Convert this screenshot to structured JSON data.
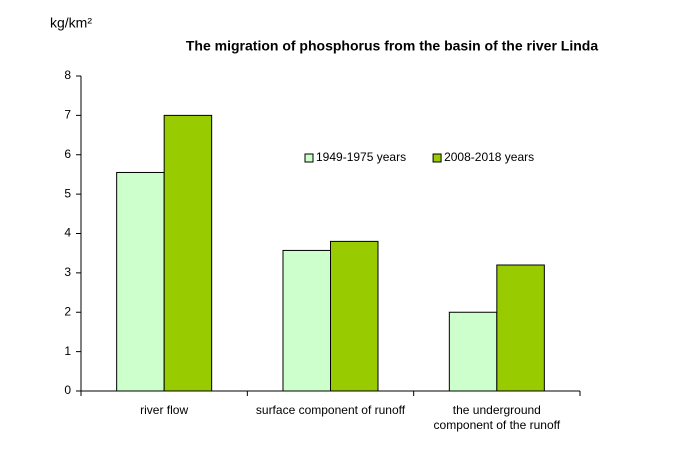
{
  "chart_data": {
    "type": "bar",
    "title": "The migration of phosphorus from the basin of the river Linda",
    "y_label": "kg/km²",
    "categories": [
      "river flow",
      "surface component of runoff",
      "the underground component of the runoff"
    ],
    "series": [
      {
        "name": "1949-1975 years",
        "color": "#ccffcc",
        "values": [
          5.55,
          3.57,
          2.0
        ]
      },
      {
        "name": "2008-2018 years",
        "color": "#99cc00",
        "values": [
          7.0,
          3.8,
          3.2
        ]
      }
    ],
    "ylim": [
      0,
      8
    ],
    "yticks": [
      0,
      1,
      2,
      3,
      4,
      5,
      6,
      7,
      8
    ],
    "grid": false,
    "legend": "top-right"
  }
}
